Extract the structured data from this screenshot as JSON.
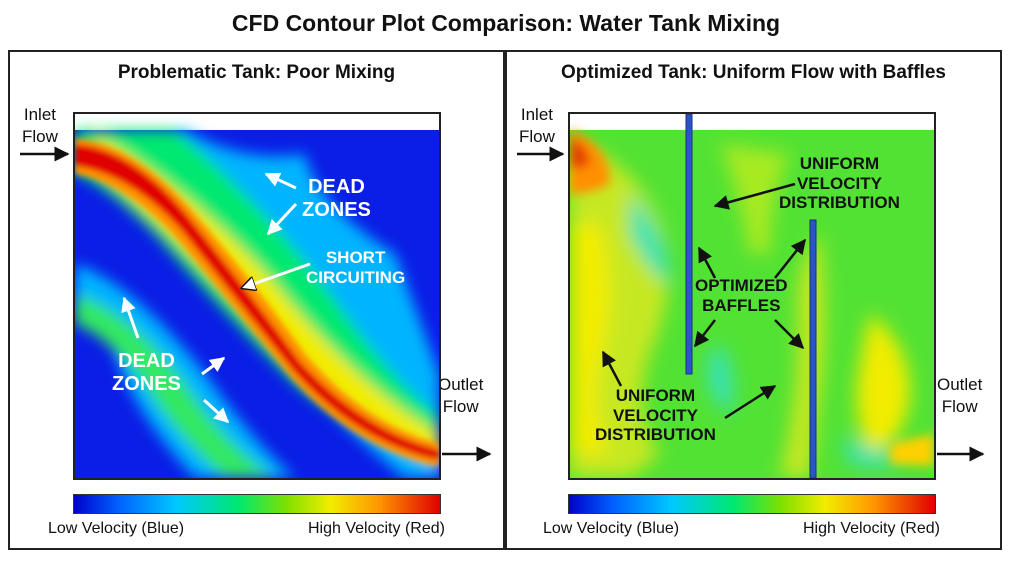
{
  "title": "CFD Contour Plot Comparison: Water Tank Mixing",
  "left_panel": {
    "title": "Problematic Tank: Poor Mixing",
    "inlet_line1": "Inlet",
    "inlet_line2": "Flow",
    "outlet_line1": "Outlet",
    "outlet_line2": "Flow",
    "dead_zones_top_1": "DEAD",
    "dead_zones_top_2": "ZONES",
    "short_circuit_1": "SHORT",
    "short_circuit_2": "CIRCUITING",
    "dead_zones_bottom_1": "DEAD",
    "dead_zones_bottom_2": "ZONES",
    "scale_low": "Low Velocity (Blue)",
    "scale_high": "High Velocity (Red)"
  },
  "right_panel": {
    "title": "Optimized Tank: Uniform Flow with Baffles",
    "inlet_line1": "Inlet",
    "inlet_line2": "Flow",
    "outlet_line1": "Outlet",
    "outlet_line2": "Flow",
    "uniform_top_1": "UNIFORM",
    "uniform_top_2": "VELOCITY",
    "uniform_top_3": "DISTRIBUTION",
    "baffles_1": "OPTIMIZED",
    "baffles_2": "BAFFLES",
    "uniform_bottom_1": "UNIFORM",
    "uniform_bottom_2": "VELOCITY",
    "uniform_bottom_3": "DISTRIBUTION",
    "scale_low": "Low Velocity (Blue)",
    "scale_high": "High Velocity (Red)"
  },
  "colors": {
    "low": "#0000cc",
    "mid": "#00e870",
    "high": "#e00000",
    "baffle": "#2a55c8"
  }
}
